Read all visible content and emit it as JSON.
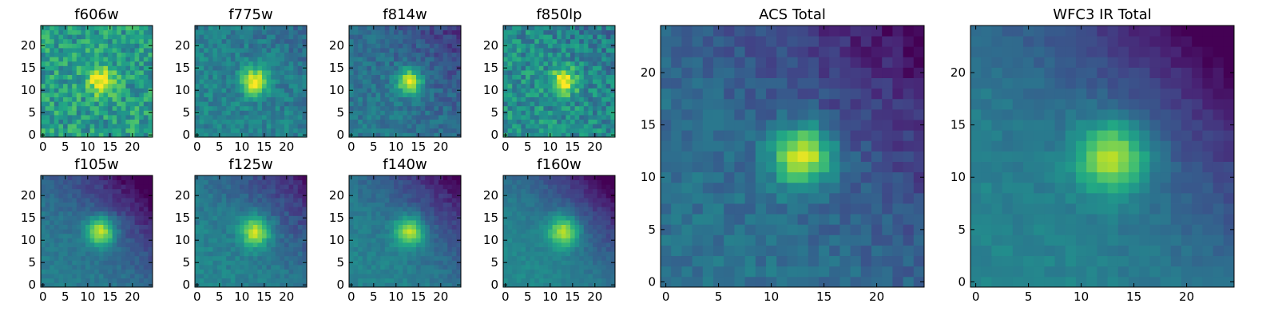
{
  "chart_data": [
    {
      "type": "heatmap",
      "title": "f606w",
      "source_x": 13,
      "source_y": 12,
      "sigma": 2.0,
      "peak": 0.55,
      "background": 0.55,
      "noise": 0.18,
      "gradient": 0.0,
      "x_ticks": [
        0,
        5,
        10,
        15,
        20
      ],
      "y_ticks": [
        0,
        5,
        10,
        15,
        20
      ],
      "xlim": [
        -0.5,
        24.5
      ],
      "ylim": [
        -0.5,
        24.5
      ],
      "colormap": "viridis"
    },
    {
      "type": "heatmap",
      "title": "f775w",
      "source_x": 13,
      "source_y": 12,
      "sigma": 2.0,
      "peak": 0.62,
      "background": 0.45,
      "noise": 0.1,
      "gradient": 0.05,
      "x_ticks": [
        0,
        5,
        10,
        15,
        20
      ],
      "y_ticks": [
        0,
        5,
        10,
        15,
        20
      ],
      "xlim": [
        -0.5,
        24.5
      ],
      "ylim": [
        -0.5,
        24.5
      ],
      "colormap": "viridis"
    },
    {
      "type": "heatmap",
      "title": "f814w",
      "source_x": 13,
      "source_y": 12,
      "sigma": 2.0,
      "peak": 0.6,
      "background": 0.4,
      "noise": 0.09,
      "gradient": 0.12,
      "x_ticks": [
        0,
        5,
        10,
        15,
        20
      ],
      "y_ticks": [
        0,
        5,
        10,
        15,
        20
      ],
      "xlim": [
        -0.5,
        24.5
      ],
      "ylim": [
        -0.5,
        24.5
      ],
      "colormap": "viridis"
    },
    {
      "type": "heatmap",
      "title": "f850lp",
      "source_x": 13,
      "source_y": 12,
      "sigma": 2.0,
      "peak": 0.55,
      "background": 0.5,
      "noise": 0.16,
      "gradient": 0.05,
      "x_ticks": [
        0,
        5,
        10,
        15,
        20
      ],
      "y_ticks": [
        0,
        5,
        10,
        15,
        20
      ],
      "xlim": [
        -0.5,
        24.5
      ],
      "ylim": [
        -0.5,
        24.5
      ],
      "colormap": "viridis"
    },
    {
      "type": "heatmap",
      "title": "f105w",
      "source_x": 13,
      "source_y": 12,
      "sigma": 2.3,
      "peak": 0.58,
      "background": 0.42,
      "noise": 0.05,
      "gradient": 0.25,
      "x_ticks": [
        0,
        5,
        10,
        15,
        20
      ],
      "y_ticks": [
        0,
        5,
        10,
        15,
        20
      ],
      "xlim": [
        -0.5,
        24.5
      ],
      "ylim": [
        -0.5,
        24.5
      ],
      "colormap": "viridis"
    },
    {
      "type": "heatmap",
      "title": "f125w",
      "source_x": 13,
      "source_y": 12,
      "sigma": 2.3,
      "peak": 0.55,
      "background": 0.45,
      "noise": 0.06,
      "gradient": 0.18,
      "x_ticks": [
        0,
        5,
        10,
        15,
        20
      ],
      "y_ticks": [
        0,
        5,
        10,
        15,
        20
      ],
      "xlim": [
        -0.5,
        24.5
      ],
      "ylim": [
        -0.5,
        24.5
      ],
      "colormap": "viridis"
    },
    {
      "type": "heatmap",
      "title": "f140w",
      "source_x": 13,
      "source_y": 12,
      "sigma": 2.3,
      "peak": 0.55,
      "background": 0.45,
      "noise": 0.05,
      "gradient": 0.22,
      "x_ticks": [
        0,
        5,
        10,
        15,
        20
      ],
      "y_ticks": [
        0,
        5,
        10,
        15,
        20
      ],
      "xlim": [
        -0.5,
        24.5
      ],
      "ylim": [
        -0.5,
        24.5
      ],
      "colormap": "viridis"
    },
    {
      "type": "heatmap",
      "title": "f160w",
      "source_x": 13,
      "source_y": 12,
      "sigma": 2.4,
      "peak": 0.52,
      "background": 0.47,
      "noise": 0.04,
      "gradient": 0.25,
      "x_ticks": [
        0,
        5,
        10,
        15,
        20
      ],
      "y_ticks": [
        0,
        5,
        10,
        15,
        20
      ],
      "xlim": [
        -0.5,
        24.5
      ],
      "ylim": [
        -0.5,
        24.5
      ],
      "colormap": "viridis"
    },
    {
      "type": "heatmap",
      "title": "ACS Total",
      "source_x": 13,
      "source_y": 12,
      "sigma": 2.0,
      "peak": 0.65,
      "background": 0.38,
      "noise": 0.07,
      "gradient": 0.18,
      "x_ticks": [
        0,
        5,
        10,
        15,
        20
      ],
      "y_ticks": [
        0,
        5,
        10,
        15,
        20
      ],
      "xlim": [
        -0.5,
        24.5
      ],
      "ylim": [
        -0.5,
        24.5
      ],
      "colormap": "viridis"
    },
    {
      "type": "heatmap",
      "title": "WFC3 IR Total",
      "source_x": 13,
      "source_y": 12,
      "sigma": 2.4,
      "peak": 0.55,
      "background": 0.45,
      "noise": 0.04,
      "gradient": 0.25,
      "x_ticks": [
        0,
        5,
        10,
        15,
        20
      ],
      "y_ticks": [
        0,
        5,
        10,
        15,
        20
      ],
      "xlim": [
        -0.5,
        24.5
      ],
      "ylim": [
        -0.5,
        24.5
      ],
      "colormap": "viridis"
    }
  ]
}
